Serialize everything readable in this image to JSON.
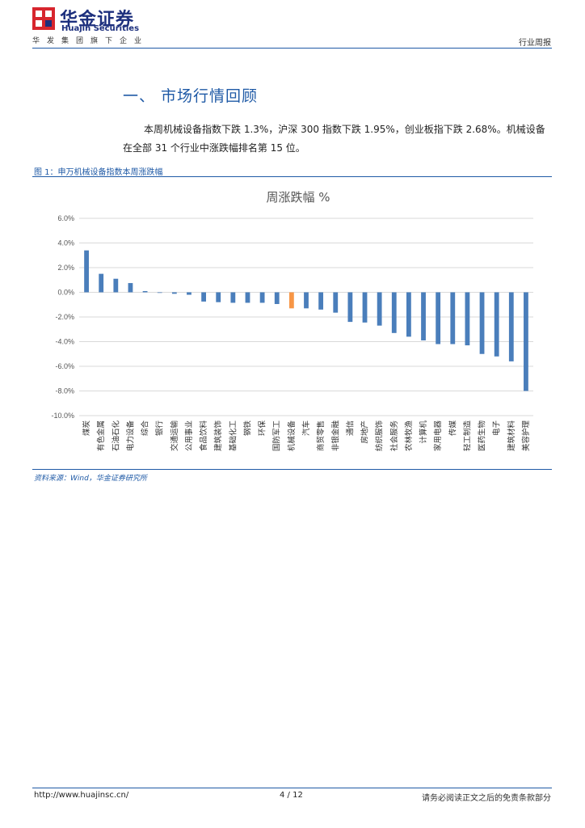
{
  "header": {
    "brand_cn": "华金证券",
    "brand_en": "Huajin Securities",
    "tagline": "华发集团旗下企业",
    "report_type": "行业周报",
    "logo_color": "#d7262e",
    "brand_color": "#1c2f7d"
  },
  "section": {
    "title": "一、 市场行情回顾",
    "para1": "本周机械设备指数下跌 1.3%，沪深 300  指数下跌 1.95%，创业板指下跌 2.68%。机械设备",
    "para2": "在全部 31 个行业中涨跌幅排名第 15  位。"
  },
  "figure": {
    "caption": "图 1：申万机械设备指数本周涨跌幅",
    "source": "资料来源：Wind，华金证券研究所"
  },
  "chart_data": {
    "type": "bar",
    "title": "周涨跌幅 %",
    "ylim": [
      -10,
      6
    ],
    "yticks": [
      "6.0%",
      "4.0%",
      "2.0%",
      "0.0%",
      "-2.0%",
      "-4.0%",
      "-6.0%",
      "-8.0%",
      "-10.0%"
    ],
    "ytick_values": [
      6,
      4,
      2,
      0,
      -2,
      -4,
      -6,
      -8,
      -10
    ],
    "grid": true,
    "categories": [
      "煤炭",
      "有色金属",
      "石油石化",
      "电力设备",
      "综合",
      "银行",
      "交通运输",
      "公用事业",
      "食品饮料",
      "建筑装饰",
      "基础化工",
      "钢铁",
      "环保",
      "国防军工",
      "机械设备",
      "汽车",
      "商贸零售",
      "非银金融",
      "通信",
      "房地产",
      "纺织服饰",
      "社会服务",
      "农林牧渔",
      "计算机",
      "家用电器",
      "传媒",
      "轻工制造",
      "医药生物",
      "电子",
      "建筑材料",
      "美容护理"
    ],
    "values": [
      3.4,
      1.5,
      1.1,
      0.75,
      0.1,
      -0.05,
      -0.12,
      -0.2,
      -0.75,
      -0.8,
      -0.85,
      -0.85,
      -0.85,
      -0.95,
      -1.3,
      -1.3,
      -1.4,
      -1.65,
      -2.4,
      -2.45,
      -2.7,
      -3.3,
      -3.6,
      -3.9,
      -4.2,
      -4.2,
      -4.3,
      -5.0,
      -5.2,
      -5.6,
      -8.0
    ],
    "highlight": "机械设备",
    "bar_color": "#4a7ebb",
    "highlight_color": "#f79646"
  },
  "footer": {
    "url": "http://www.huajinsc.cn/",
    "page": "4 / 12",
    "disclaimer": "请务必阅读正文之后的免责条款部分"
  }
}
